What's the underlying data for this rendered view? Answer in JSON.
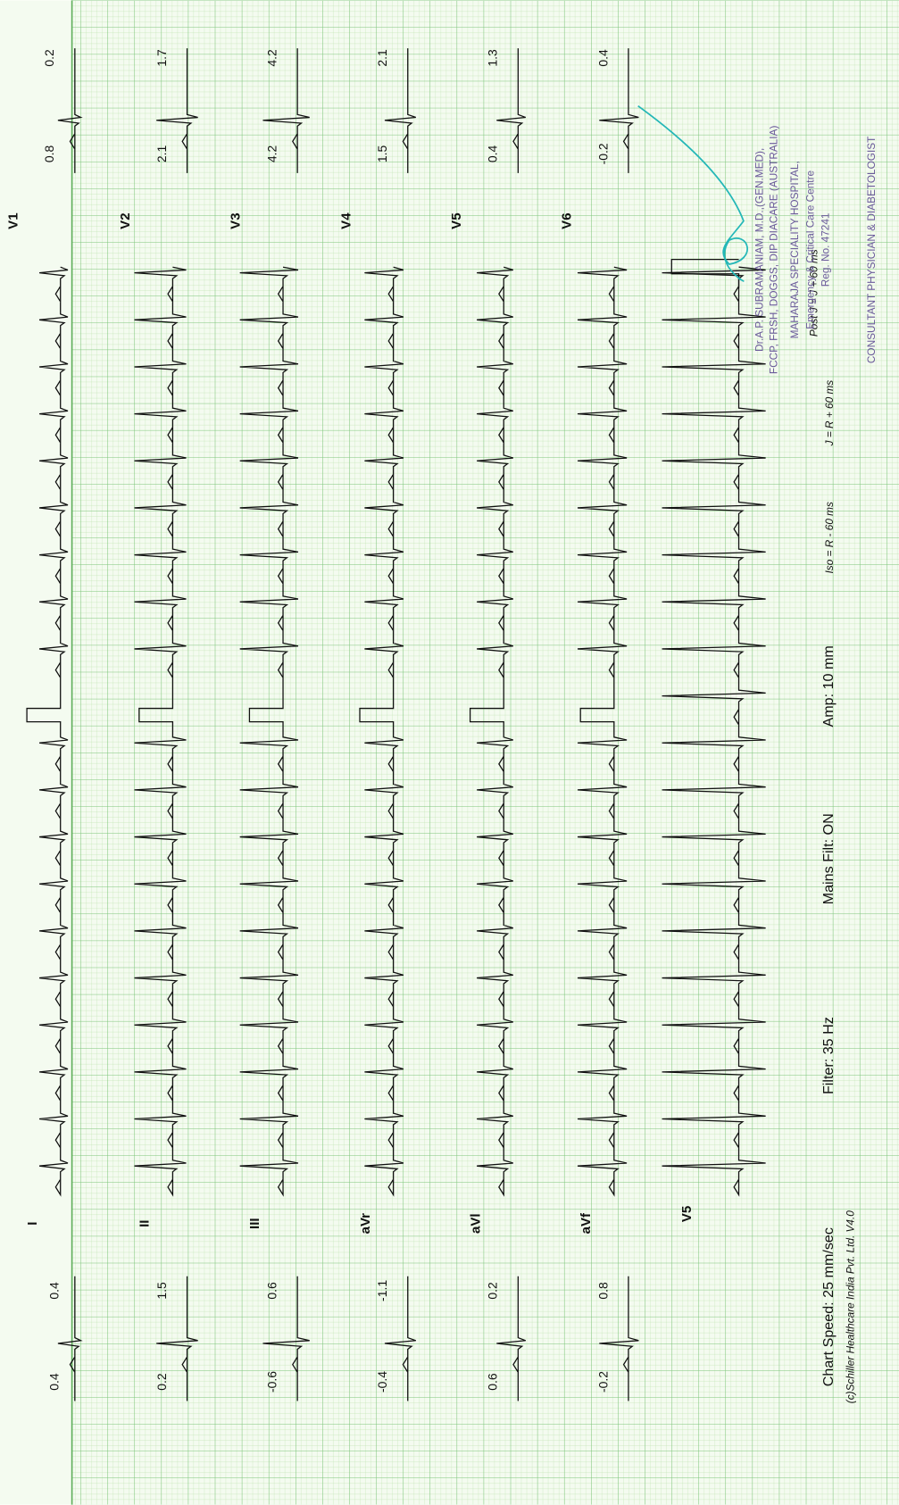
{
  "limb_leads": [
    {
      "name": "I",
      "measures": [
        "0.4",
        "0.4"
      ]
    },
    {
      "name": "II",
      "measures": [
        "0.2",
        "1.5"
      ]
    },
    {
      "name": "III",
      "measures": [
        "-0.6",
        "0.6"
      ]
    },
    {
      "name": "aVr",
      "measures": [
        "-0.4",
        "-1.1"
      ]
    },
    {
      "name": "aVl",
      "measures": [
        "0.6",
        "0.2"
      ]
    },
    {
      "name": "aVf",
      "measures": [
        "-0.2",
        "0.8"
      ]
    }
  ],
  "chest_leads": [
    {
      "name": "V1",
      "measures": [
        "0.8",
        "0.2"
      ]
    },
    {
      "name": "V2",
      "measures": [
        "2.1",
        "1.7"
      ]
    },
    {
      "name": "V3",
      "measures": [
        "4.2",
        "4.2"
      ]
    },
    {
      "name": "V4",
      "measures": [
        "1.5",
        "2.1"
      ]
    },
    {
      "name": "V5",
      "measures": [
        "0.4",
        "1.3"
      ]
    },
    {
      "name": "V6",
      "measures": [
        "-0.2",
        "0.4"
      ]
    }
  ],
  "rhythm_lead": "V5",
  "settings": {
    "chart_speed": "Chart Speed: 25 mm/sec",
    "filter": "Filter: 35 Hz",
    "mains": "Mains Filt: ON",
    "amp": "Amp: 10 mm",
    "iso": "Iso = R - 60 ms",
    "j": "J = R + 60 ms",
    "post_j": "Post J = J + 60 ms"
  },
  "copyright": "(c)Schiller Healthcare India Pvt. Ltd. V4.0",
  "stamp": [
    "Dr.A.P. SUBRAMANIAM, M.D.,(GEN.MED),",
    "FCCP, FRSH, DOGGS, DIP DIACARE (AUSTRALIA)",
    "MAHARAJA SPECIALITY HOSPITAL,",
    "Emergency & Critical Care Centre",
    "Reg. No. 47241",
    "CONSULTANT PHYSICIAN & DIABETOLOGIST"
  ]
}
